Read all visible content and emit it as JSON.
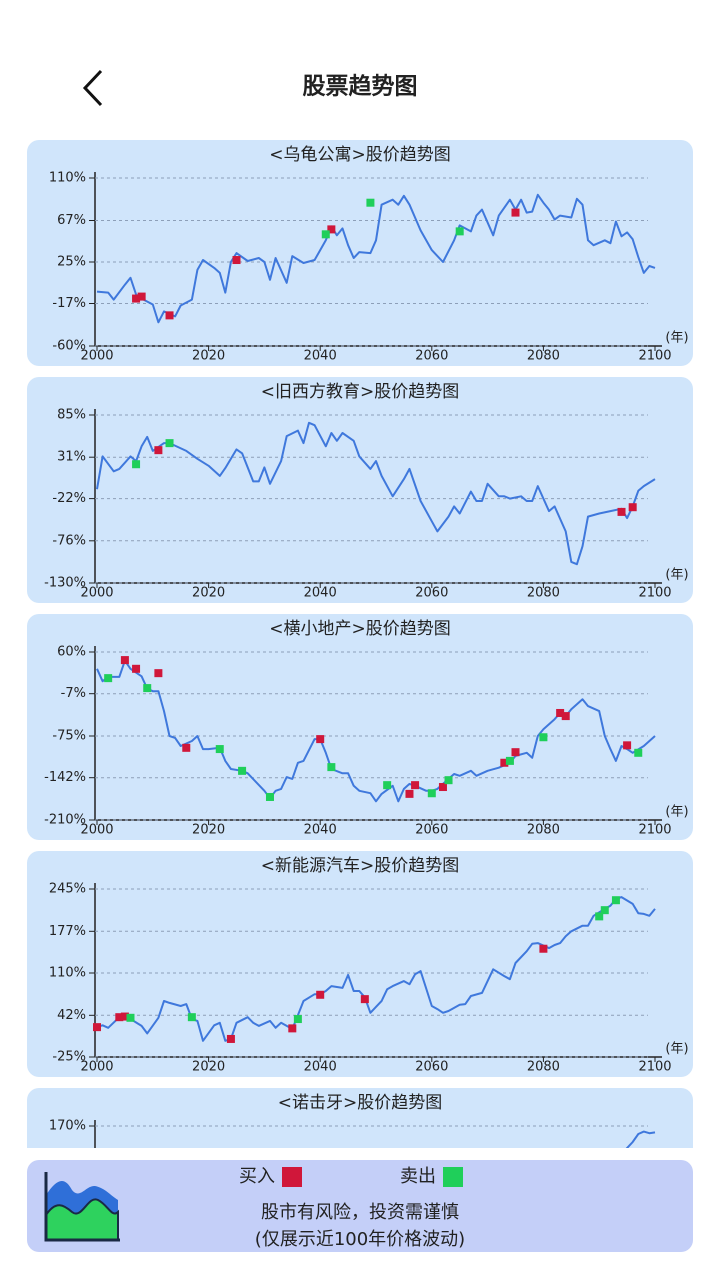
{
  "header": {
    "title": "股票趋势图"
  },
  "chart_data": [
    {
      "type": "line",
      "title": "<乌龟公寓>股价趋势图",
      "x_label": "(年)",
      "color": "#3f78dc",
      "grid": true,
      "xlim": [
        2000,
        2100
      ],
      "xticks": [
        2000,
        2020,
        2040,
        2060,
        2080,
        2100
      ],
      "ylim": [
        -60,
        110
      ],
      "yticks": [
        {
          "value": 110,
          "label": "110%"
        },
        {
          "value": 67,
          "label": "67%"
        },
        {
          "value": 25,
          "label": "25%"
        },
        {
          "value": -17,
          "label": "-17%"
        },
        {
          "value": -60,
          "label": "-60%"
        }
      ],
      "x": [
        2000,
        2002,
        2003,
        2005,
        2006,
        2007,
        2008,
        2010,
        2011,
        2012,
        2014,
        2015,
        2017,
        2018,
        2019,
        2021,
        2022,
        2023,
        2024,
        2025,
        2027,
        2029,
        2030,
        2031,
        2032,
        2034,
        2035,
        2037,
        2039,
        2041,
        2042,
        2043,
        2044,
        2045,
        2046,
        2047,
        2049,
        2050,
        2051,
        2053,
        2054,
        2055,
        2056,
        2058,
        2060,
        2062,
        2064,
        2065,
        2066,
        2067,
        2068,
        2069,
        2071,
        2072,
        2074,
        2075,
        2076,
        2077,
        2078,
        2079,
        2080,
        2081,
        2082,
        2083,
        2085,
        2086,
        2087,
        2088,
        2089,
        2091,
        2092,
        2093,
        2094,
        2095,
        2096,
        2097,
        2098,
        2099,
        2100
      ],
      "values": [
        -5,
        -6,
        -13,
        2,
        9,
        -8,
        -12,
        -18,
        -36,
        -25,
        -30,
        -19,
        -13,
        17,
        27,
        19,
        14,
        -6,
        25,
        34,
        26,
        29,
        25,
        7,
        29,
        4,
        31,
        24,
        27,
        47,
        61,
        52,
        59,
        42,
        29,
        35,
        34,
        47,
        83,
        88,
        83,
        92,
        83,
        57,
        37,
        25,
        47,
        62,
        59,
        56,
        72,
        78,
        52,
        72,
        88,
        78,
        88,
        75,
        76,
        93,
        85,
        78,
        68,
        72,
        70,
        89,
        83,
        47,
        42,
        47,
        44,
        66,
        51,
        55,
        48,
        30,
        14,
        21,
        19
      ],
      "buy": {
        "x": [
          2007,
          2008,
          2013,
          2025,
          2042,
          2075
        ],
        "values": [
          -12,
          -10,
          -29,
          27,
          58,
          75
        ]
      },
      "sell": {
        "x": [
          2041,
          2049,
          2065
        ],
        "values": [
          53,
          85,
          56
        ]
      }
    },
    {
      "type": "line",
      "title": "<旧西方教育>股价趋势图",
      "x_label": "(年)",
      "color": "#3f78dc",
      "grid": true,
      "xlim": [
        2000,
        2100
      ],
      "xticks": [
        2000,
        2020,
        2040,
        2060,
        2080,
        2100
      ],
      "ylim": [
        -130,
        85
      ],
      "yticks": [
        {
          "value": 85,
          "label": "85%"
        },
        {
          "value": 31,
          "label": "31%"
        },
        {
          "value": -22,
          "label": "-22%"
        },
        {
          "value": -76,
          "label": "-76%"
        },
        {
          "value": -130,
          "label": "-130%"
        }
      ],
      "x": [
        2000,
        2001,
        2003,
        2004,
        2006,
        2007,
        2008,
        2009,
        2010,
        2012,
        2013,
        2016,
        2018,
        2020,
        2022,
        2023,
        2025,
        2026,
        2028,
        2029,
        2030,
        2031,
        2033,
        2034,
        2036,
        2037,
        2038,
        2039,
        2041,
        2042,
        2043,
        2044,
        2046,
        2047,
        2049,
        2050,
        2051,
        2053,
        2055,
        2056,
        2058,
        2060,
        2061,
        2063,
        2064,
        2065,
        2067,
        2068,
        2069,
        2070,
        2072,
        2073,
        2074,
        2076,
        2077,
        2078,
        2079,
        2081,
        2082,
        2084,
        2085,
        2086,
        2087,
        2088,
        2090,
        2092,
        2094,
        2095,
        2096,
        2097,
        2098,
        2100
      ],
      "values": [
        -10,
        32,
        13,
        16,
        32,
        26,
        45,
        57,
        39,
        49,
        49,
        39,
        29,
        20,
        7,
        17,
        41,
        36,
        0,
        0,
        18,
        -3,
        26,
        58,
        65,
        49,
        75,
        72,
        45,
        62,
        52,
        62,
        52,
        32,
        16,
        26,
        7,
        -19,
        3,
        16,
        -25,
        -51,
        -64,
        -45,
        -32,
        -41,
        -13,
        -25,
        -25,
        -3,
        -19,
        -19,
        -22,
        -19,
        -25,
        -25,
        -6,
        -38,
        -32,
        -64,
        -103,
        -106,
        -83,
        -45,
        -41,
        -38,
        -35,
        -47,
        -32,
        -12,
        -6,
        3
      ],
      "buy": {
        "x": [
          2011,
          2094,
          2096
        ],
        "values": [
          40,
          -39,
          -33
        ]
      },
      "sell": {
        "x": [
          2007,
          2013
        ],
        "values": [
          22,
          49
        ]
      }
    },
    {
      "type": "line",
      "title": "<横小地产>股价趋势图",
      "x_label": "(年)",
      "color": "#3f78dc",
      "grid": true,
      "xlim": [
        2000,
        2100
      ],
      "xticks": [
        2000,
        2020,
        2040,
        2060,
        2080,
        2100
      ],
      "ylim": [
        -210,
        60
      ],
      "yticks": [
        {
          "value": 60,
          "label": "60%"
        },
        {
          "value": -7,
          "label": "-7%"
        },
        {
          "value": -75,
          "label": "-75%"
        },
        {
          "value": -142,
          "label": "-142%"
        },
        {
          "value": -210,
          "label": "-210%"
        }
      ],
      "x": [
        2000,
        2001,
        2002,
        2004,
        2005,
        2006,
        2008,
        2009,
        2010,
        2011,
        2012,
        2013,
        2014,
        2015,
        2017,
        2018,
        2019,
        2020,
        2022,
        2023,
        2024,
        2026,
        2027,
        2030,
        2031,
        2032,
        2033,
        2034,
        2035,
        2036,
        2037,
        2039,
        2040,
        2041,
        2042,
        2044,
        2045,
        2046,
        2047,
        2049,
        2050,
        2051,
        2053,
        2054,
        2055,
        2056,
        2057,
        2059,
        2060,
        2061,
        2063,
        2064,
        2065,
        2067,
        2068,
        2070,
        2072,
        2074,
        2075,
        2077,
        2078,
        2079,
        2080,
        2082,
        2083,
        2084,
        2085,
        2087,
        2088,
        2090,
        2091,
        2092,
        2093,
        2094,
        2095,
        2096,
        2098,
        2099,
        2100
      ],
      "values": [
        33,
        13,
        20,
        20,
        46,
        33,
        21,
        1,
        -3,
        -3,
        -35,
        -75,
        -78,
        -91,
        -83,
        -75,
        -96,
        -96,
        -94,
        -115,
        -128,
        -131,
        -135,
        -163,
        -175,
        -163,
        -160,
        -141,
        -144,
        -118,
        -115,
        -80,
        -80,
        -102,
        -128,
        -135,
        -135,
        -155,
        -163,
        -167,
        -180,
        -168,
        -155,
        -180,
        -160,
        -152,
        -155,
        -163,
        -163,
        -160,
        -144,
        -136,
        -139,
        -131,
        -139,
        -131,
        -126,
        -118,
        -107,
        -102,
        -110,
        -75,
        -64,
        -48,
        -38,
        -43,
        -32,
        -16,
        -27,
        -35,
        -75,
        -96,
        -115,
        -91,
        -96,
        -102,
        -91,
        -83,
        -75
      ],
      "buy": {
        "x": [
          2005,
          2007,
          2011,
          2016,
          2040,
          2056,
          2057,
          2062,
          2073,
          2075,
          2083,
          2084,
          2095
        ],
        "values": [
          47,
          33,
          26,
          -94,
          -80,
          -168,
          -154,
          -157,
          -118,
          -101,
          -38,
          -43,
          -90
        ]
      },
      "sell": {
        "x": [
          2002,
          2009,
          2022,
          2026,
          2031,
          2042,
          2052,
          2060,
          2063,
          2074,
          2080,
          2097
        ],
        "values": [
          18,
          2,
          -96,
          -131,
          -173,
          -125,
          -154,
          -167,
          -146,
          -115,
          -77,
          -102
        ]
      }
    },
    {
      "type": "line",
      "title": "<新能源汽车>股价趋势图",
      "x_label": "(年)",
      "color": "#3f78dc",
      "grid": true,
      "xlim": [
        2000,
        2100
      ],
      "xticks": [
        2000,
        2020,
        2040,
        2060,
        2080,
        2100
      ],
      "ylim": [
        -25,
        245
      ],
      "yticks": [
        {
          "value": 245,
          "label": "245%"
        },
        {
          "value": 177,
          "label": "177%"
        },
        {
          "value": 110,
          "label": "110%"
        },
        {
          "value": 42,
          "label": "42%"
        },
        {
          "value": -25,
          "label": "-25%"
        }
      ],
      "x": [
        2000,
        2001,
        2002,
        2004,
        2005,
        2006,
        2008,
        2009,
        2011,
        2012,
        2013,
        2015,
        2016,
        2017,
        2018,
        2019,
        2021,
        2022,
        2023,
        2024,
        2025,
        2027,
        2028,
        2029,
        2031,
        2032,
        2033,
        2035,
        2036,
        2037,
        2039,
        2040,
        2041,
        2042,
        2044,
        2045,
        2046,
        2047,
        2048,
        2049,
        2051,
        2052,
        2053,
        2055,
        2056,
        2057,
        2058,
        2060,
        2061,
        2062,
        2063,
        2065,
        2066,
        2067,
        2069,
        2070,
        2071,
        2073,
        2074,
        2075,
        2077,
        2078,
        2079,
        2081,
        2082,
        2083,
        2084,
        2085,
        2087,
        2088,
        2089,
        2091,
        2092,
        2093,
        2094,
        2096,
        2097,
        2098,
        2099,
        2100
      ],
      "values": [
        23,
        26,
        22,
        39,
        40,
        36,
        25,
        13,
        38,
        65,
        62,
        57,
        60,
        36,
        33,
        1,
        26,
        30,
        1,
        4,
        30,
        39,
        30,
        25,
        33,
        22,
        30,
        20,
        42,
        65,
        76,
        76,
        81,
        89,
        86,
        107,
        81,
        81,
        71,
        46,
        65,
        84,
        89,
        97,
        92,
        108,
        113,
        57,
        52,
        46,
        49,
        59,
        60,
        73,
        78,
        97,
        116,
        105,
        100,
        126,
        145,
        157,
        158,
        150,
        155,
        158,
        169,
        177,
        186,
        186,
        202,
        213,
        218,
        229,
        232,
        221,
        206,
        205,
        202,
        213
      ],
      "buy": {
        "x": [
          2000,
          2004,
          2005,
          2024,
          2035,
          2040,
          2048,
          2080
        ],
        "values": [
          23,
          39,
          40,
          4,
          21,
          75,
          68,
          149
        ]
      },
      "sell": {
        "x": [
          2006,
          2017,
          2036,
          2090,
          2091,
          2093
        ],
        "values": [
          38,
          39,
          36,
          201,
          211,
          227
        ]
      }
    },
    {
      "type": "line",
      "title": "<诺击牙>股价趋势图",
      "color": "#3f78dc",
      "grid": true,
      "xlim": [
        2000,
        2100
      ],
      "ylim": [
        -40,
        170
      ],
      "yticks": [
        {
          "value": 170,
          "label": "170%"
        }
      ],
      "x": [
        2094,
        2096,
        2097,
        2098,
        2099,
        2100
      ],
      "values": [
        135,
        150,
        160,
        163,
        161,
        162
      ]
    }
  ],
  "legend": {
    "buy": {
      "label": "买入",
      "color": "#d0173a"
    },
    "sell": {
      "label": "卖出",
      "color": "#1fcf5a"
    }
  },
  "notice": [
    "股市有风险，投资需谨慎",
    "(仅展示近100年价格波动)"
  ]
}
